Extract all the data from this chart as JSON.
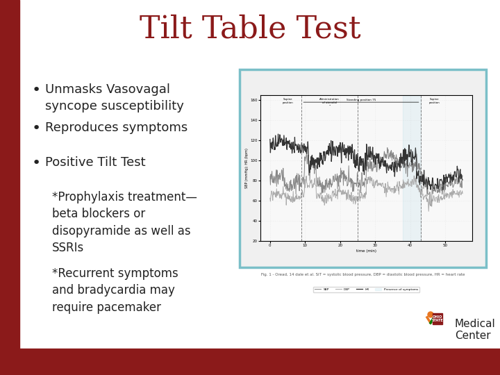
{
  "title": "Tilt Table Test",
  "title_color": "#8B1A1A",
  "title_fontsize": 32,
  "background_color": "#FFFFFF",
  "border_color": "#8B1A1A",
  "bottom_bar_color": "#8B1A1A",
  "bullet_points": [
    "Unmasks Vasovagal\nsyncope susceptibility",
    "Reproduces symptoms",
    "Positive Tilt Test"
  ],
  "sub_bullets": [
    "*Prophylaxis treatment—\nbeta blockers or\ndisopyramide as well as\nSSRIs",
    "*Recurrent symptoms\nand bradycardia may\nrequire pacemaker"
  ],
  "text_color": "#222222",
  "text_fontsize": 13,
  "sub_text_fontsize": 12,
  "graph_border_color": "#7BBFC8",
  "caption_text": "Fig. 1 - Oread, 14 dale et al. SIT = systolic blood pressure, DBP = diastolic blood pressure, HR = heart rate"
}
